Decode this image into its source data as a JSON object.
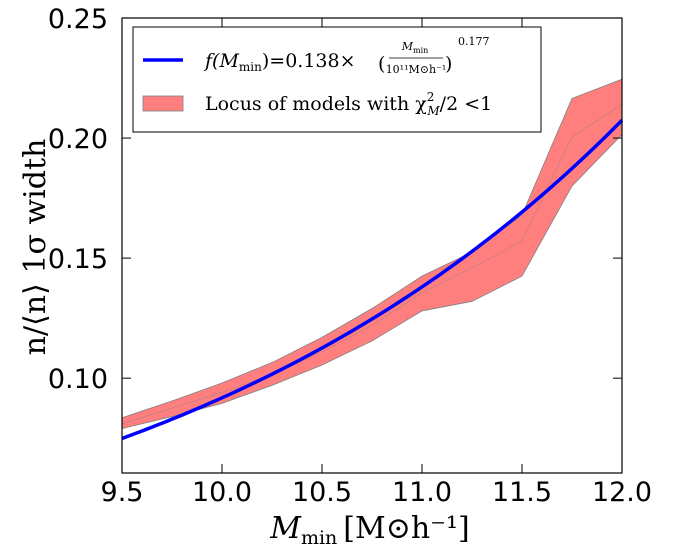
{
  "chart_data": {
    "type": "line",
    "xlabel": "M_min [M_⊙h^-1]",
    "xlabel_main": "M",
    "xlabel_sub": "min",
    "xlabel_unit": "[M⊙h⁻¹]",
    "ylabel": "n/⟨n⟩ 1σ width",
    "xlim": [
      9.5,
      12.0
    ],
    "ylim": [
      0.0605,
      0.25
    ],
    "xticks": [
      "9.5",
      "10.0",
      "10.5",
      "11.0",
      "11.5",
      "12.0"
    ],
    "yticks": [
      "0.10",
      "0.15",
      "0.20",
      "0.25"
    ],
    "xtick_values": [
      9.5,
      10.0,
      10.5,
      11.0,
      11.5,
      12.0
    ],
    "ytick_values": [
      0.1,
      0.15,
      0.2,
      0.25
    ],
    "grid": false,
    "legend_position": "top-left",
    "series": [
      {
        "name": "f(M_min) = 0.138 × (M_min / 10^11 M_⊙h^-1)^0.177",
        "kind": "line",
        "color": "#0000ff",
        "amplitude": 0.138,
        "exponent": 0.177,
        "pivot_log10": 11
      },
      {
        "name": "Locus of models with χ²_M/2 < 1",
        "kind": "band",
        "color": "#ff7f7f",
        "edge_color": "#808080",
        "x": [
          9.5,
          9.75,
          10.0,
          10.25,
          10.5,
          10.75,
          11.0,
          11.25,
          11.5,
          11.75,
          12.0
        ],
        "upper": [
          0.0835,
          0.0905,
          0.098,
          0.1065,
          0.117,
          0.129,
          0.1425,
          0.1525,
          0.168,
          0.2165,
          0.2245
        ],
        "lower": [
          0.079,
          0.084,
          0.0895,
          0.097,
          0.1055,
          0.1155,
          0.128,
          0.132,
          0.1425,
          0.18,
          0.2015
        ],
        "mid": [
          0.081,
          0.0875,
          0.094,
          0.1015,
          0.111,
          0.122,
          0.1355,
          0.146,
          0.157,
          0.2005,
          0.214
        ]
      }
    ]
  },
  "legend": {
    "line_label_prefix": "f(M",
    "line_label_sub": "min",
    "line_label_eq": ")=0.138×",
    "frac_num_main": "M",
    "frac_num_sub": "min",
    "frac_den": "10¹¹M⊙h⁻¹",
    "power": "0.177",
    "band_label_prefix": "Locus of models with χ",
    "band_label_sup": "2",
    "band_label_sub": "M",
    "band_label_suffix": "/2 <1"
  }
}
